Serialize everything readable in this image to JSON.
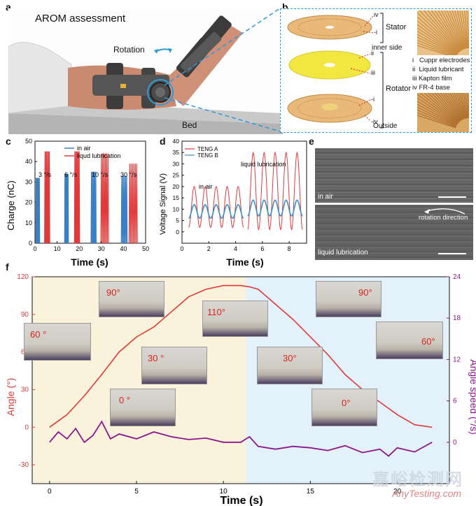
{
  "panels": {
    "a": "a",
    "b": "b",
    "c": "c",
    "d": "d",
    "e": "e",
    "f": "f"
  },
  "panel_a": {
    "title": "AROM assessment",
    "rotation_label": "Rotation",
    "bed_label": "Bed"
  },
  "panel_b": {
    "group_labels": {
      "stator": "Stator",
      "rotator": "Rotator"
    },
    "side_labels": {
      "inner": "inner side",
      "outside": "Outside"
    },
    "layer_marks": [
      "iv",
      "-i",
      "ii",
      "iii",
      "-i",
      "-iv"
    ],
    "legend": [
      "i   Cuppr electrodes",
      "ii  Liquid lubricant",
      "iii Kapton film",
      "iv FR-4 base"
    ]
  },
  "panel_e": {
    "label_top": "in air",
    "label_bottom": "liquid lubrication",
    "rotation_text": "rotation direction"
  },
  "chart_data": [
    {
      "type": "bar",
      "id": "c",
      "xlabel": "Time (s)",
      "ylabel": "Charge (nC)",
      "xlim": [
        0,
        50
      ],
      "ylim": [
        0,
        50
      ],
      "xticks": [
        "0",
        "10",
        "20",
        "30",
        "40",
        "50"
      ],
      "yticks": [
        "0",
        "10",
        "20",
        "30",
        "40",
        "50"
      ],
      "legend": [
        "in air",
        "liqud lubrication"
      ],
      "colors": {
        "in air": "#3b7fc4",
        "liqud lubrication": "#e0393a"
      },
      "annotations": [
        "3 °/s",
        "6 °/s",
        "10 °/s",
        "30 °/s"
      ],
      "series": [
        {
          "name": "in air",
          "groups": [
            {
              "start": 0.5,
              "end": 2.0,
              "value": 32
            },
            {
              "start": 13.5,
              "end": 15.0,
              "value": 34
            },
            {
              "start": 25.5,
              "end": 27.5,
              "value": 35
            },
            {
              "start": 39.2,
              "end": 41.5,
              "value": 33
            }
          ]
        },
        {
          "name": "liqud lubrication",
          "groups": [
            {
              "start": 4.5,
              "end": 6.5,
              "value": 45
            },
            {
              "start": 18.0,
              "end": 20.0,
              "value": 45
            },
            {
              "start": 30.0,
              "end": 33.0,
              "value": 44
            },
            {
              "start": 42.8,
              "end": 46.0,
              "value": 39
            }
          ]
        }
      ]
    },
    {
      "type": "line",
      "id": "d",
      "xlabel": "Time (s)",
      "ylabel": "Voltage Signal (V)",
      "xlim": [
        0,
        9.3
      ],
      "ylim": [
        -5,
        40
      ],
      "xticks": [
        "0",
        "2",
        "4",
        "6",
        "8"
      ],
      "yticks": [
        "0",
        "5",
        "10",
        "15",
        "20",
        "25",
        "30",
        "35",
        "40"
      ],
      "legend": [
        "TENG A",
        "TENG B"
      ],
      "annotations": [
        "in air",
        "liquid lubrication"
      ],
      "series": [
        {
          "name": "TENG A",
          "color": "#e0393a",
          "segments": [
            {
              "start": 0.5,
              "end": 4.6,
              "min": 2,
              "max": 20
            },
            {
              "start": 4.9,
              "end": 9.0,
              "min": 1,
              "max": 35
            }
          ]
        },
        {
          "name": "TENG B",
          "color": "#3b8fc9",
          "segments": [
            {
              "start": 0.5,
              "end": 4.6,
              "min": 6,
              "max": 12
            },
            {
              "start": 4.9,
              "end": 9.0,
              "min": 7,
              "max": 14
            }
          ]
        }
      ]
    },
    {
      "type": "line",
      "id": "f",
      "xlabel": "Time (s)",
      "ylabel": "Angle (°)",
      "y2label": "Angle speed (°/s)",
      "xlim": [
        -1,
        23
      ],
      "ylim": [
        -45,
        120
      ],
      "y2lim": [
        -6,
        24
      ],
      "xticks": [
        "0",
        "5",
        "10",
        "15",
        "20"
      ],
      "yticks": [
        "-30",
        "0",
        "30",
        "60",
        "90",
        "120"
      ],
      "y2ticks": [
        "0",
        "6",
        "12",
        "18",
        "24"
      ],
      "regions": [
        {
          "from": -1,
          "to": 11.3,
          "color": "#fbf2dc"
        },
        {
          "from": 11.3,
          "to": 23,
          "color": "#e3f2fa"
        }
      ],
      "series": [
        {
          "name": "Angle",
          "color": "#e0393a",
          "x": [
            0,
            1,
            2,
            3,
            4,
            5,
            6,
            7,
            8,
            9,
            10,
            11,
            11.5,
            12,
            13,
            14,
            15,
            16,
            17,
            18,
            19,
            20,
            21,
            22
          ],
          "y": [
            0,
            10,
            25,
            42,
            60,
            72,
            80,
            92,
            104,
            110,
            113,
            113,
            112,
            110,
            98,
            86,
            72,
            58,
            42,
            30,
            20,
            10,
            2,
            0
          ]
        },
        {
          "name": "Angle speed",
          "color": "#8b168b",
          "axis": "y2",
          "x": [
            0,
            0.5,
            1,
            1.5,
            2,
            2.5,
            3,
            3.5,
            4,
            5,
            6,
            7,
            8,
            9,
            10,
            11,
            11.5,
            12,
            13,
            14,
            15,
            16,
            17,
            18,
            19,
            19.5,
            20,
            21,
            22
          ],
          "y": [
            0,
            1.5,
            0.5,
            2,
            0,
            1,
            3,
            0.5,
            1.2,
            0.5,
            1.5,
            0.8,
            0.4,
            0.6,
            0,
            0,
            0.8,
            -0.6,
            -1,
            -0.6,
            -0.8,
            -1.2,
            -0.5,
            -1.5,
            -1,
            -2,
            -0.8,
            -1.4,
            0
          ]
        }
      ],
      "thumbnail_labels": [
        "90°",
        "110°",
        "90°",
        "60 °",
        "60°",
        "30 °",
        "30°",
        "0 °",
        "0°"
      ]
    }
  ],
  "watermark": {
    "cn": "嘉峪检测网",
    "en": "AnyTesting.com"
  }
}
